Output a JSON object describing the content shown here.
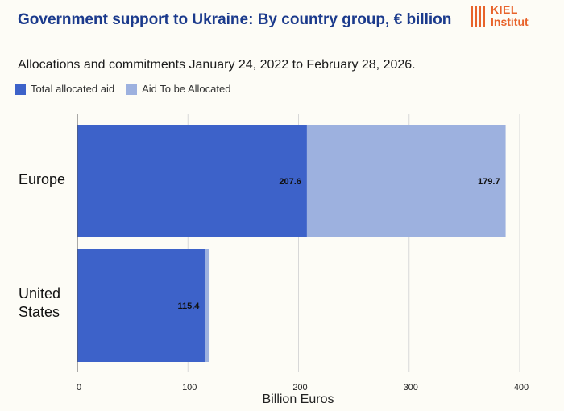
{
  "header": {
    "title": "Government support to Ukraine: By country group, € billion",
    "subtitle": "Allocations and commitments January 24, 2022 to February 28, 2026."
  },
  "logo": {
    "line1": "KIEL",
    "line2": "Institut",
    "color": "#e8632b"
  },
  "chart_data": {
    "type": "bar",
    "orientation": "horizontal",
    "stacked": true,
    "categories": [
      "Europe",
      "United States"
    ],
    "series": [
      {
        "name": "Total allocated aid",
        "values": [
          207.6,
          115.4
        ],
        "color": "#3d62c9",
        "labels": [
          "207.6",
          "115.4"
        ]
      },
      {
        "name": "Aid To be Allocated",
        "values": [
          179.7,
          3.8
        ],
        "color": "#9db1df",
        "labels": [
          "179.7",
          ""
        ]
      }
    ],
    "xlabel": "Billion Euros",
    "xlim": [
      0,
      400
    ],
    "xticks": [
      0,
      100,
      200,
      300,
      400
    ],
    "grid": true,
    "legend": "top-left"
  }
}
